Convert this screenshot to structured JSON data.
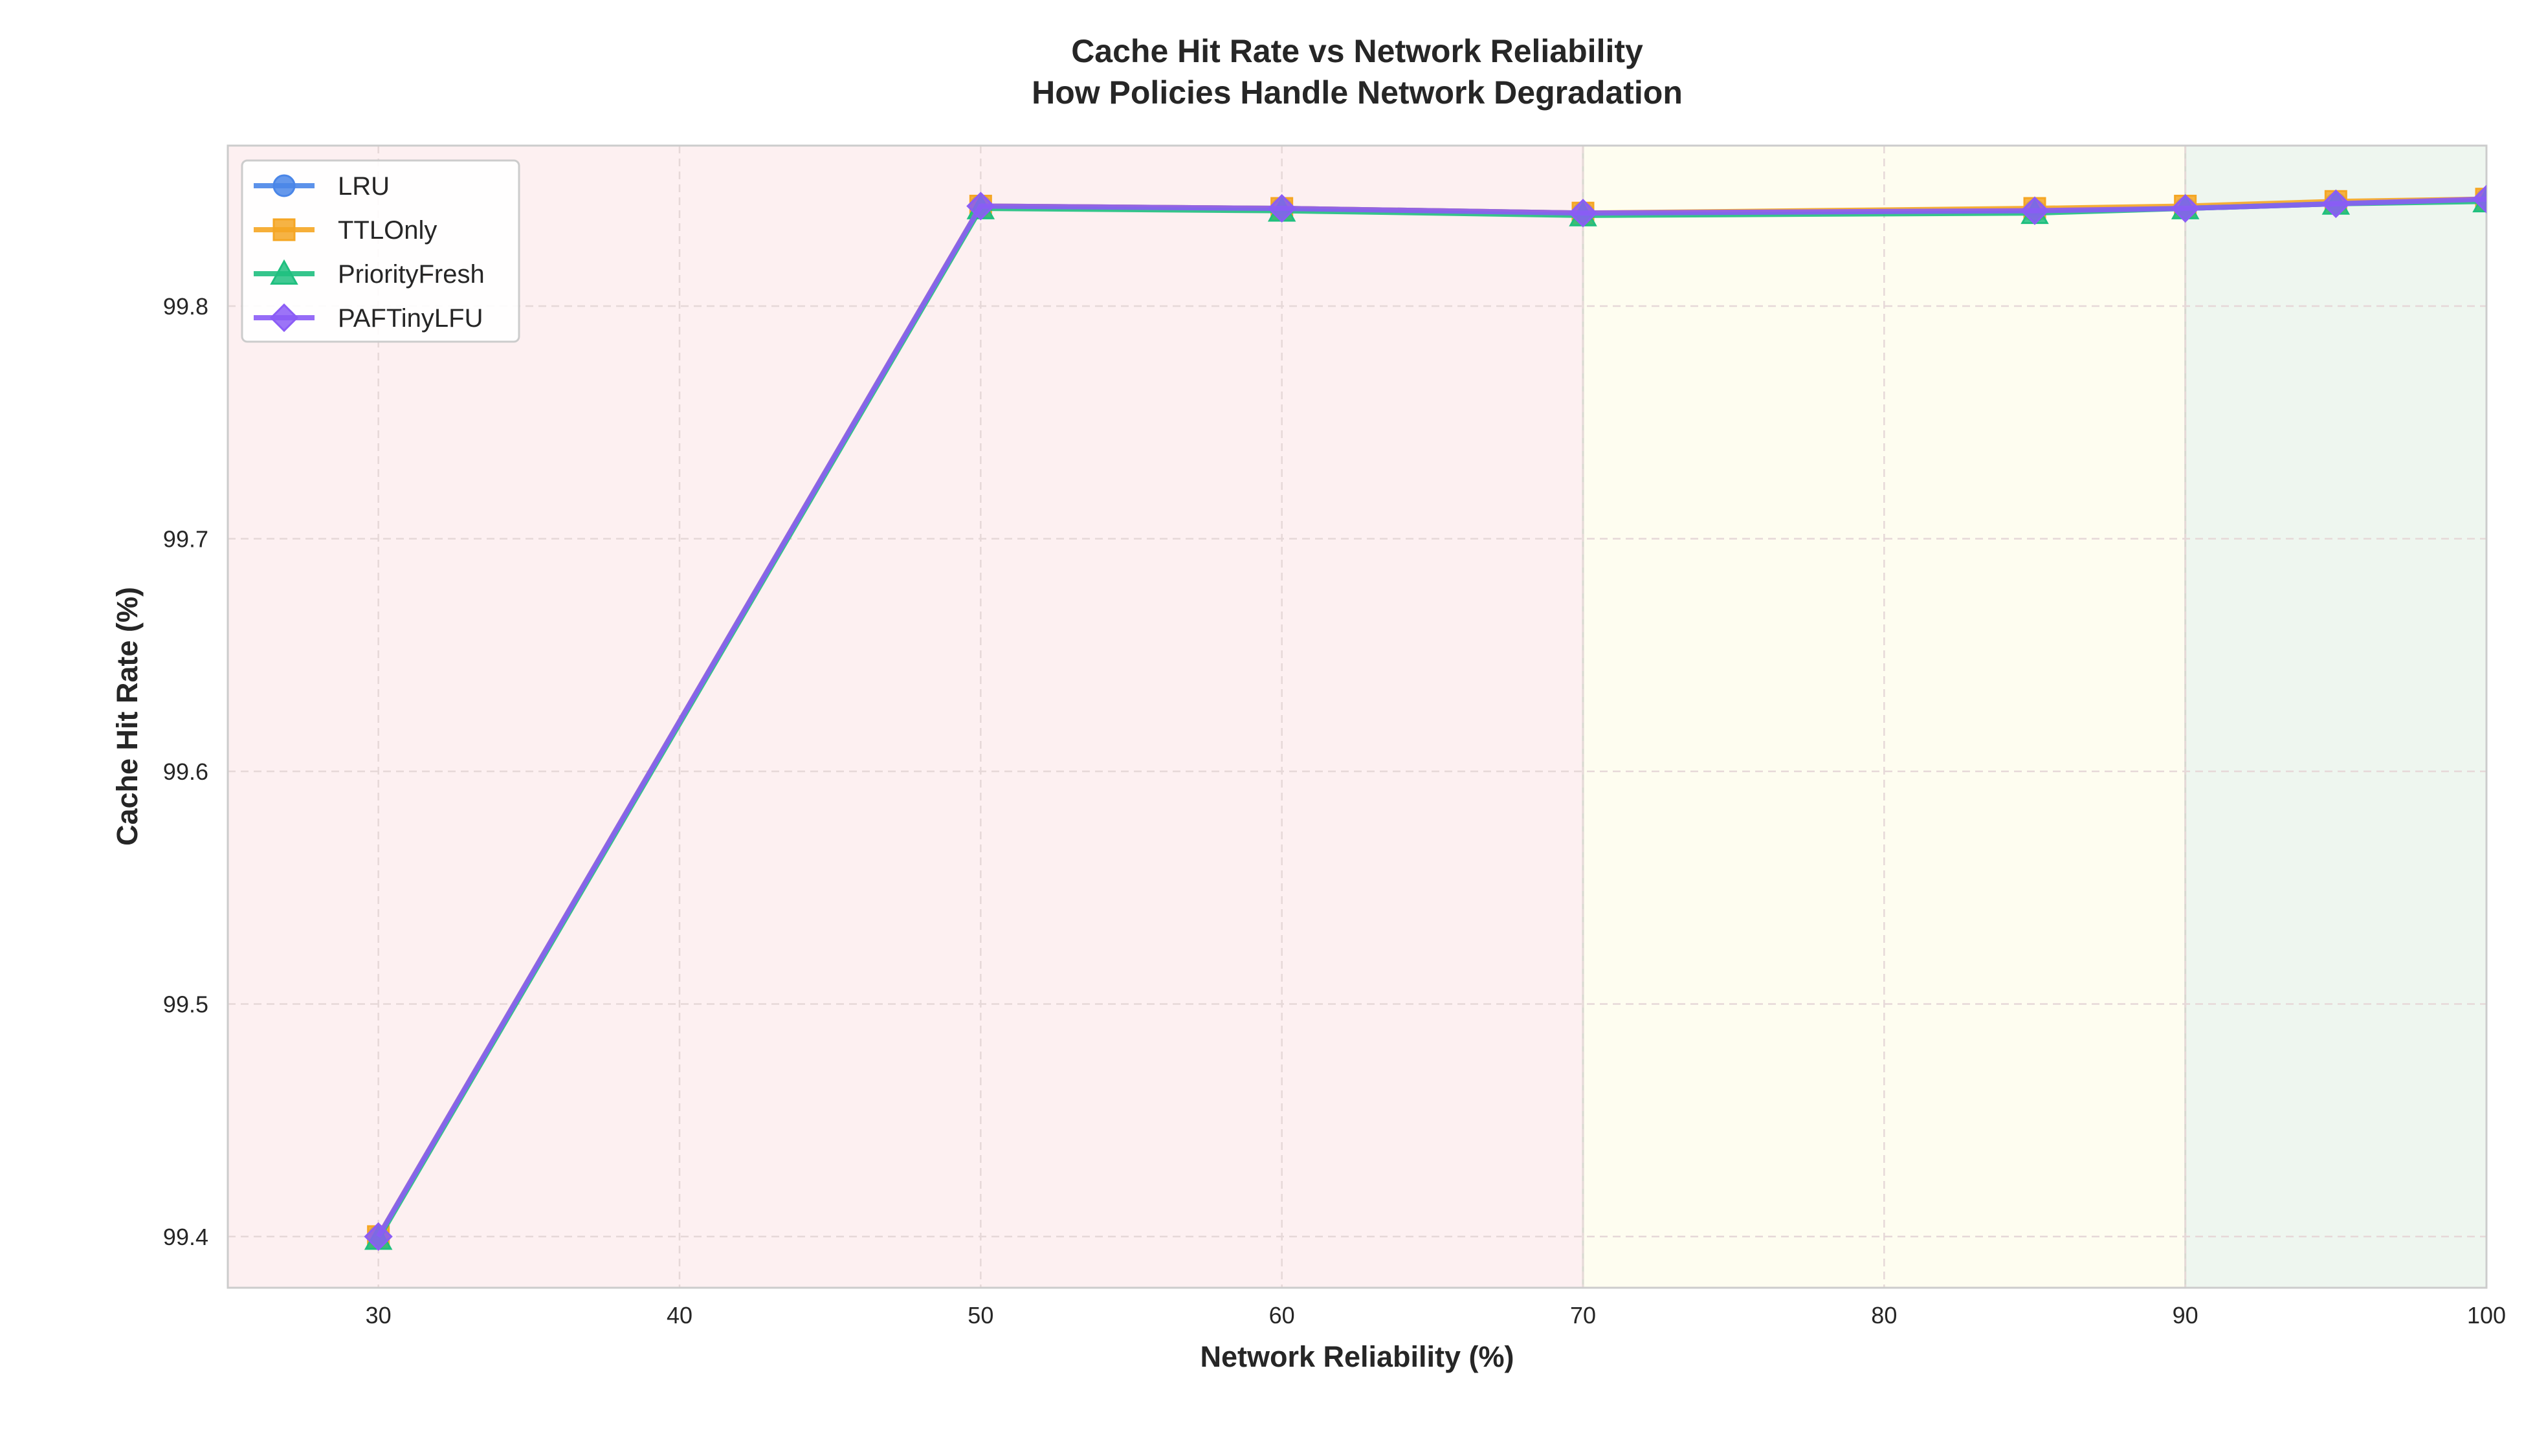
{
  "chart_data": {
    "type": "line",
    "title": "Cache Hit Rate vs Network Reliability",
    "subtitle": "How Policies Handle Network Degradation",
    "xlabel": "Network Reliability (%)",
    "ylabel": "Cache Hit Rate (%)",
    "xlim": [
      25,
      100
    ],
    "ylim": [
      99.378,
      99.869
    ],
    "xticks": [
      30,
      40,
      50,
      60,
      70,
      80,
      90,
      100
    ],
    "yticks": [
      99.4,
      99.5,
      99.6,
      99.7,
      99.8
    ],
    "xtick_labels": [
      "30",
      "40",
      "50",
      "60",
      "70",
      "80",
      "90",
      "100"
    ],
    "ytick_labels": [
      "99.4",
      "99.5",
      "99.6",
      "99.7",
      "99.8"
    ],
    "grid": true,
    "legend_position": "top-left",
    "regions": [
      {
        "x_from": 25,
        "x_to": 70,
        "color": "#fdf0f1"
      },
      {
        "x_from": 70,
        "x_to": 90,
        "color": "#fefdf0"
      },
      {
        "x_from": 90,
        "x_to": 100,
        "color": "#eef6ef"
      }
    ],
    "x": [
      30,
      50,
      60,
      70,
      85,
      90,
      95,
      100
    ],
    "series": [
      {
        "name": "LRU",
        "color": "#4a86e8",
        "marker": "circle",
        "values": [
          99.4,
          99.843,
          99.842,
          99.84,
          99.841,
          99.842,
          99.844,
          99.846
        ]
      },
      {
        "name": "TTLOnly",
        "color": "#f5a623",
        "marker": "square",
        "values": [
          99.4,
          99.843,
          99.842,
          99.84,
          99.842,
          99.843,
          99.845,
          99.846
        ]
      },
      {
        "name": "PriorityFresh",
        "color": "#1fbf7f",
        "marker": "triangle",
        "values": [
          99.399,
          99.842,
          99.841,
          99.839,
          99.84,
          99.842,
          99.844,
          99.845
        ]
      },
      {
        "name": "PAFTinyLFU",
        "color": "#8b5cf6",
        "marker": "diamond",
        "values": [
          99.4,
          99.843,
          99.842,
          99.84,
          99.841,
          99.842,
          99.844,
          99.846
        ]
      }
    ]
  }
}
